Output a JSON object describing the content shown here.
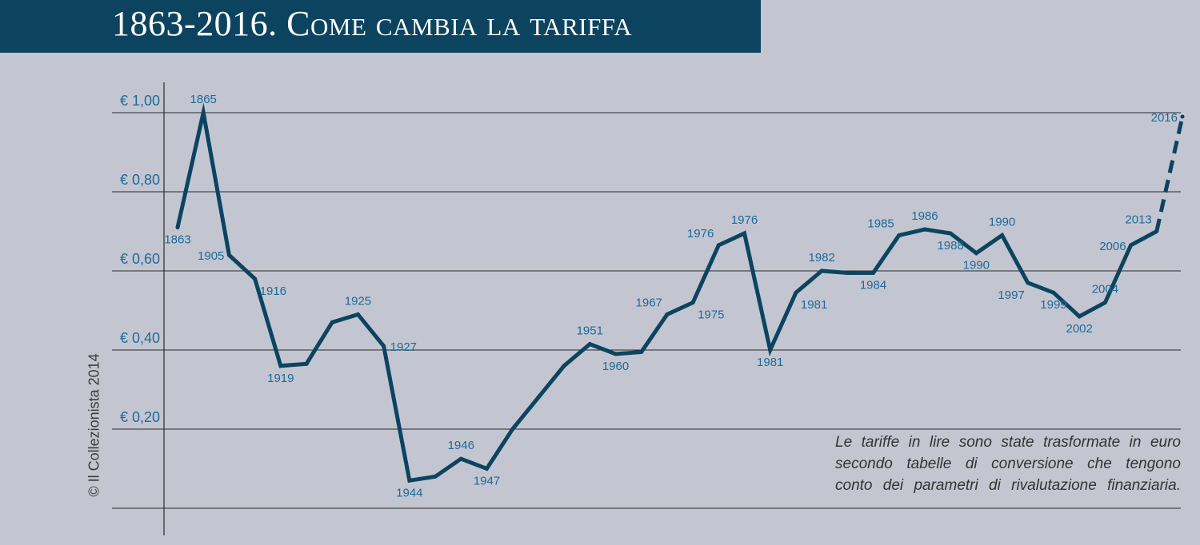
{
  "title": "1863-2016. Come cambia la tariffa",
  "copyright": "© Il Collezionista 2014",
  "footnote_lines": [
    "Le tariffe in lire sono state trasformate in euro",
    "secondo tabelle di conversione che tengono",
    "conto dei parametri di rivalutazione finanziaria."
  ],
  "colors": {
    "line": "#0c4460",
    "label": "#1d6a99",
    "grid": "#2a2a2a",
    "background": "#c3c6d1",
    "title_bar": "#0c4460"
  },
  "chart_data": {
    "type": "line",
    "title": "1863-2016. Come cambia la tariffa",
    "ylim": [
      0,
      1.05
    ],
    "grid": true,
    "y_ticks": [
      {
        "value": 1.0,
        "label": "€ 1,00"
      },
      {
        "value": 0.8,
        "label": "€ 0,80"
      },
      {
        "value": 0.6,
        "label": "€ 0,60"
      },
      {
        "value": 0.4,
        "label": "€ 0,40"
      },
      {
        "value": 0.2,
        "label": "€ 0,20"
      }
    ],
    "points": [
      {
        "label": "1863",
        "value": 0.71,
        "pos": "below"
      },
      {
        "label": "1865",
        "value": 1.0,
        "pos": "above"
      },
      {
        "label": "1905",
        "value": 0.64,
        "pos": "left"
      },
      {
        "label": "1916",
        "value": 0.58,
        "pos": "below-right"
      },
      {
        "label": "1919",
        "value": 0.36,
        "pos": "below"
      },
      {
        "label": "",
        "value": 0.365,
        "pos": "none"
      },
      {
        "label": "",
        "value": 0.47,
        "pos": "none"
      },
      {
        "label": "1925",
        "value": 0.49,
        "pos": "above"
      },
      {
        "label": "1927",
        "value": 0.41,
        "pos": "right"
      },
      {
        "label": "1944",
        "value": 0.07,
        "pos": "below"
      },
      {
        "label": "",
        "value": 0.08,
        "pos": "none"
      },
      {
        "label": "1946",
        "value": 0.125,
        "pos": "above"
      },
      {
        "label": "1947",
        "value": 0.1,
        "pos": "below"
      },
      {
        "label": "",
        "value": 0.2,
        "pos": "none"
      },
      {
        "label": "",
        "value": 0.28,
        "pos": "none"
      },
      {
        "label": "",
        "value": 0.36,
        "pos": "none"
      },
      {
        "label": "1951",
        "value": 0.415,
        "pos": "above"
      },
      {
        "label": "1960",
        "value": 0.39,
        "pos": "below"
      },
      {
        "label": "",
        "value": 0.395,
        "pos": "none"
      },
      {
        "label": "1967",
        "value": 0.49,
        "pos": "above-left"
      },
      {
        "label": "1975",
        "value": 0.52,
        "pos": "below-right"
      },
      {
        "label": "1976",
        "value": 0.665,
        "pos": "above-left"
      },
      {
        "label": "1976",
        "value": 0.695,
        "pos": "above"
      },
      {
        "label": "1981",
        "value": 0.4,
        "pos": "below"
      },
      {
        "label": "1981",
        "value": 0.545,
        "pos": "below-right"
      },
      {
        "label": "1982",
        "value": 0.6,
        "pos": "above"
      },
      {
        "label": "",
        "value": 0.595,
        "pos": "none"
      },
      {
        "label": "1984",
        "value": 0.595,
        "pos": "below"
      },
      {
        "label": "1985",
        "value": 0.69,
        "pos": "above-left"
      },
      {
        "label": "1986",
        "value": 0.705,
        "pos": "above"
      },
      {
        "label": "1988",
        "value": 0.695,
        "pos": "below"
      },
      {
        "label": "1990",
        "value": 0.645,
        "pos": "below"
      },
      {
        "label": "1990",
        "value": 0.69,
        "pos": "above"
      },
      {
        "label": "1997",
        "value": 0.57,
        "pos": "below-left"
      },
      {
        "label": "1999",
        "value": 0.545,
        "pos": "below"
      },
      {
        "label": "2002",
        "value": 0.485,
        "pos": "below"
      },
      {
        "label": "2004",
        "value": 0.52,
        "pos": "above"
      },
      {
        "label": "2006",
        "value": 0.665,
        "pos": "left"
      },
      {
        "label": "2013",
        "value": 0.7,
        "pos": "above-left"
      },
      {
        "label": "2016",
        "value": 0.99,
        "pos": "left",
        "dashed": true
      }
    ]
  }
}
